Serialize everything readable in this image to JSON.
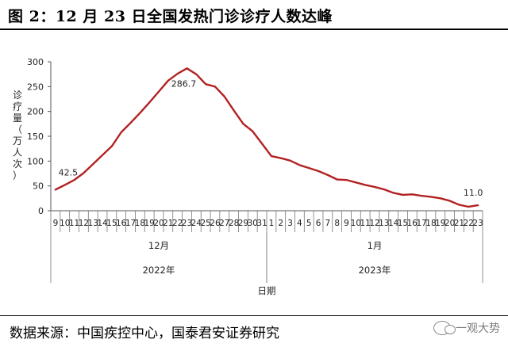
{
  "figure": {
    "title": "图 2：12 月 23 日全国发热门诊诊疗人数达峰",
    "source": "数据来源：中国疾控中心，国泰君安证券研究",
    "watermark": "一观大势"
  },
  "chart_data": {
    "type": "line",
    "ylabel": "诊疗量（万人次）",
    "xlabel": "日期",
    "ylim": [
      0,
      300
    ],
    "yticks": [
      0,
      50,
      100,
      150,
      200,
      250,
      300
    ],
    "grid": false,
    "x": [
      "9",
      "10",
      "11",
      "12",
      "13",
      "14",
      "15",
      "16",
      "17",
      "18",
      "19",
      "20",
      "21",
      "22",
      "23",
      "24",
      "25",
      "26",
      "27",
      "28",
      "29",
      "30",
      "31",
      "1",
      "2",
      "3",
      "4",
      "5",
      "6",
      "7",
      "8",
      "9",
      "10",
      "11",
      "12",
      "13",
      "14",
      "15",
      "16",
      "17",
      "18",
      "19",
      "20",
      "21",
      "22",
      "23"
    ],
    "month_groups": [
      {
        "month": "12月",
        "year": "2022年",
        "start": 0,
        "end": 22
      },
      {
        "month": "1月",
        "year": "2023年",
        "start": 23,
        "end": 45
      }
    ],
    "series": [
      {
        "color": "#b22222",
        "values": [
          42.5,
          52,
          62,
          76,
          94,
          112,
          130,
          158,
          177,
          197,
          218,
          240,
          262,
          276,
          286.7,
          275,
          255,
          250,
          230,
          202,
          175,
          160,
          135,
          110,
          106,
          101,
          92,
          86,
          80,
          72,
          63,
          62,
          57,
          52,
          48,
          43,
          36,
          32,
          33,
          30,
          28,
          25,
          20,
          12,
          8,
          11.0
        ]
      }
    ],
    "annotations": [
      {
        "index": 0,
        "text": "42.5"
      },
      {
        "index": 14,
        "text": "286.7"
      },
      {
        "index": 45,
        "text": "11.0"
      }
    ]
  }
}
